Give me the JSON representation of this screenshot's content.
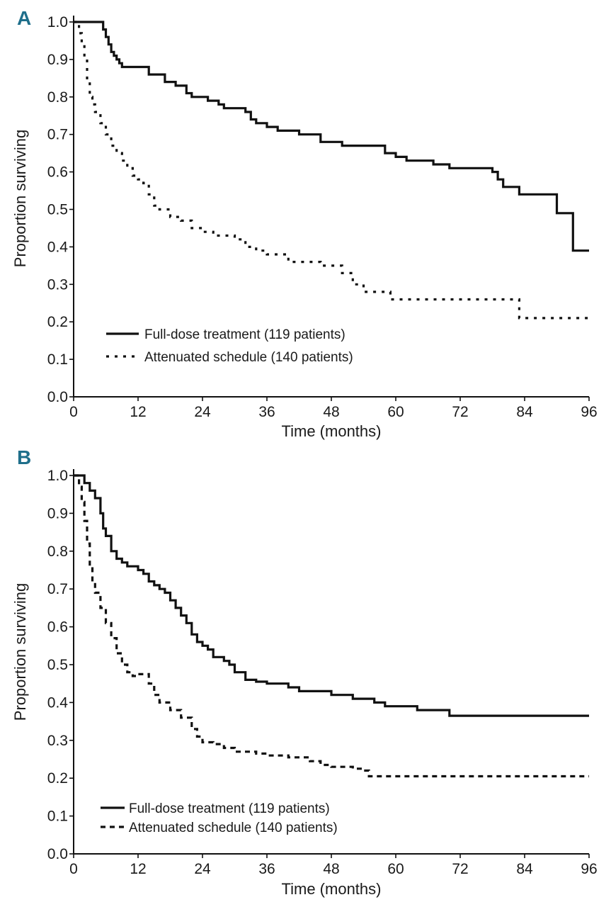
{
  "chart_data": [
    {
      "panel_label": "A",
      "type": "line",
      "subtype": "kaplan-meier",
      "xlabel": "Time (months)",
      "ylabel": "Proportion surviving",
      "xlim": [
        0,
        96
      ],
      "ylim": [
        0,
        1
      ],
      "xticks": [
        "0",
        "12",
        "24",
        "36",
        "48",
        "60",
        "72",
        "84",
        "96"
      ],
      "yticks": [
        "0.0",
        "0.1",
        "0.2",
        "0.3",
        "0.4",
        "0.5",
        "0.6",
        "0.7",
        "0.8",
        "0.9",
        "1.0"
      ],
      "grid": false,
      "legend_position": "bottom-left",
      "series": [
        {
          "name": "Full-dose treatment (119 patients)",
          "style": "solid",
          "color": "#111111",
          "x": [
            0,
            2,
            5.5,
            6,
            6.5,
            7,
            7.5,
            8,
            8.5,
            9,
            10,
            14,
            17,
            19,
            21,
            22,
            25,
            27,
            28,
            32,
            33,
            34,
            36,
            38,
            42,
            46,
            50,
            58,
            60,
            62,
            67,
            70,
            78,
            79,
            80,
            83,
            90,
            93,
            96
          ],
          "y": [
            1.0,
            1.0,
            0.98,
            0.96,
            0.94,
            0.92,
            0.91,
            0.9,
            0.89,
            0.88,
            0.88,
            0.86,
            0.84,
            0.83,
            0.81,
            0.8,
            0.79,
            0.78,
            0.77,
            0.76,
            0.74,
            0.73,
            0.72,
            0.71,
            0.7,
            0.68,
            0.67,
            0.65,
            0.64,
            0.63,
            0.62,
            0.61,
            0.6,
            0.58,
            0.56,
            0.54,
            0.49,
            0.39,
            0.39
          ]
        },
        {
          "name": "Attenuated schedule (140 patients)",
          "style": "dotted",
          "color": "#111111",
          "x": [
            0,
            1,
            1.5,
            2,
            2.5,
            3,
            3.5,
            4,
            5,
            6,
            7,
            8,
            9,
            10,
            11,
            12,
            13,
            14,
            15,
            16,
            18,
            20,
            22,
            24,
            26,
            30,
            32,
            34,
            36,
            40,
            46,
            50,
            52,
            54,
            59,
            60,
            82,
            83,
            96
          ],
          "y": [
            1.0,
            0.97,
            0.94,
            0.9,
            0.85,
            0.8,
            0.78,
            0.76,
            0.73,
            0.7,
            0.67,
            0.65,
            0.63,
            0.61,
            0.59,
            0.58,
            0.57,
            0.54,
            0.51,
            0.5,
            0.48,
            0.47,
            0.45,
            0.44,
            0.43,
            0.42,
            0.4,
            0.39,
            0.38,
            0.36,
            0.35,
            0.33,
            0.3,
            0.28,
            0.26,
            0.26,
            0.26,
            0.21,
            0.21
          ]
        }
      ]
    },
    {
      "panel_label": "B",
      "type": "line",
      "subtype": "kaplan-meier",
      "xlabel": "Time (months)",
      "ylabel": "Proportion surviving",
      "xlim": [
        0,
        96
      ],
      "ylim": [
        0,
        1
      ],
      "xticks": [
        "0",
        "12",
        "24",
        "36",
        "48",
        "60",
        "72",
        "84",
        "96"
      ],
      "yticks": [
        "0.0",
        "0.1",
        "0.2",
        "0.3",
        "0.4",
        "0.5",
        "0.6",
        "0.7",
        "0.8",
        "0.9",
        "1.0"
      ],
      "grid": false,
      "legend_position": "bottom-left",
      "series": [
        {
          "name": "Full-dose treatment (119 patients)",
          "style": "solid",
          "color": "#111111",
          "x": [
            0,
            1,
            2,
            3,
            4,
            5,
            5.5,
            6,
            7,
            8,
            9,
            10,
            12,
            13,
            14,
            15,
            16,
            17,
            18,
            19,
            20,
            21,
            22,
            23,
            24,
            25,
            26,
            28,
            29,
            30,
            32,
            34,
            36,
            40,
            42,
            48,
            52,
            56,
            58,
            64,
            70,
            96
          ],
          "y": [
            1.0,
            1.0,
            0.98,
            0.96,
            0.94,
            0.9,
            0.86,
            0.84,
            0.8,
            0.78,
            0.77,
            0.76,
            0.75,
            0.74,
            0.72,
            0.71,
            0.7,
            0.69,
            0.67,
            0.65,
            0.63,
            0.61,
            0.58,
            0.56,
            0.55,
            0.54,
            0.52,
            0.51,
            0.5,
            0.48,
            0.46,
            0.455,
            0.45,
            0.44,
            0.43,
            0.42,
            0.41,
            0.4,
            0.39,
            0.38,
            0.365,
            0.365
          ]
        },
        {
          "name": "Attenuated schedule (140 patients)",
          "style": "dashed",
          "color": "#111111",
          "x": [
            0,
            1,
            1.5,
            2,
            2.5,
            3,
            3.5,
            4,
            5,
            6,
            7,
            8,
            9,
            10,
            11,
            12,
            14,
            15,
            16,
            18,
            20,
            22,
            23,
            24,
            26,
            28,
            30,
            34,
            36,
            40,
            44,
            46,
            48,
            52,
            54,
            55,
            96
          ],
          "y": [
            1.0,
            0.97,
            0.93,
            0.88,
            0.82,
            0.76,
            0.72,
            0.69,
            0.65,
            0.61,
            0.57,
            0.53,
            0.5,
            0.48,
            0.47,
            0.475,
            0.45,
            0.42,
            0.4,
            0.38,
            0.36,
            0.33,
            0.31,
            0.295,
            0.29,
            0.28,
            0.27,
            0.265,
            0.26,
            0.255,
            0.245,
            0.235,
            0.23,
            0.225,
            0.22,
            0.205,
            0.205
          ]
        }
      ]
    }
  ]
}
